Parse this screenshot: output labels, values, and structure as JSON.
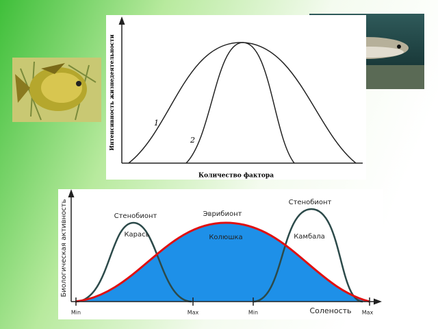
{
  "top_diagram": {
    "y_label": "Интенсивность жизнедеятельности",
    "x_label": "Количество фактора",
    "curve_labels": [
      "1",
      "2"
    ]
  },
  "bottom_diagram": {
    "y_label": "Биологическая активность",
    "x_label": "Соленость",
    "curve_titles": [
      "Стенобионт",
      "Эврибионт",
      "Стенобионт"
    ],
    "species": [
      "Карась",
      "Колюшка",
      "Камбала"
    ],
    "x_ticks": [
      "Min",
      "Max",
      "Min",
      "Max"
    ]
  }
}
